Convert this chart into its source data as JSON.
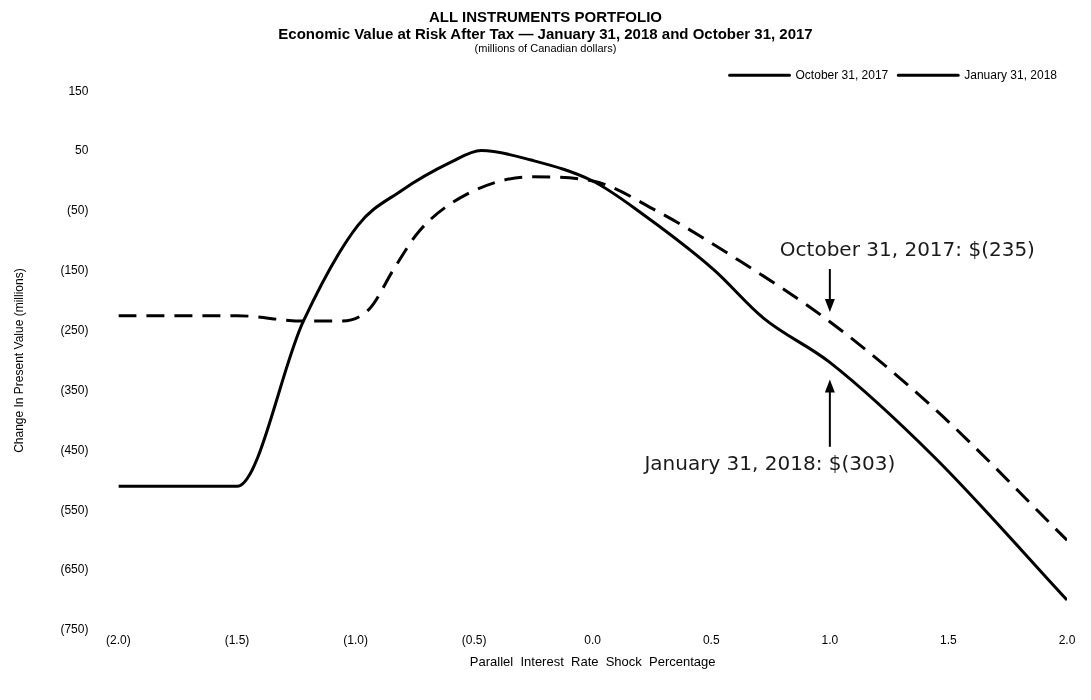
{
  "chart_data": {
    "type": "line",
    "title": "ALL INSTRUMENTS  PORTFOLIO",
    "subtitle": "Economic  Value at Risk After Tax — January 31, 2018 and October 31, 2017",
    "xlabel": "Parallel  Interest  Rate  Shock  Percentage",
    "ylabel": "Change In Present Value (millions)",
    "series": [
      {
        "name": "October 31, 2017",
        "color": "#000000",
        "line_style": "dashed",
        "x": [
          -2.0,
          -1.5,
          -1.22,
          -1.06,
          -0.94,
          -0.84,
          -0.73,
          -0.53,
          -0.26,
          0.0,
          0.27,
          0.59,
          1.0,
          1.44,
          2.0
        ],
        "values": [
          -225,
          -225,
          -234,
          -234,
          -213,
          -148,
          -83,
          -22,
          7,
          0,
          -50,
          -126,
          -235,
          -380,
          -600
        ]
      },
      {
        "name": "January 31, 2018",
        "color": "#000000",
        "line_style": "solid",
        "x": [
          -2.0,
          -1.5,
          -1.22,
          -0.99,
          -0.81,
          -0.6,
          -0.47,
          -0.26,
          0.0,
          0.21,
          0.51,
          0.72,
          1.0,
          1.44,
          2.0
        ],
        "values": [
          -510,
          -510,
          -234,
          -74,
          -17,
          31,
          51,
          35,
          0,
          -55,
          -148,
          -229,
          -303,
          -461,
          -700
        ]
      }
    ],
    "xlim": [
      -2.0,
      2.0
    ],
    "xticks": [
      {
        "value": -2.0,
        "label": "(2.0)"
      },
      {
        "value": -1.5,
        "label": "(1.5)"
      },
      {
        "value": -1.0,
        "label": "(1.0)"
      },
      {
        "value": -0.5,
        "label": "(0.5)"
      },
      {
        "value": 0,
        "label": "0.0"
      },
      {
        "value": 0.5,
        "label": "0.5"
      },
      {
        "value": 1.0,
        "label": "1.0"
      },
      {
        "value": 1.5,
        "label": "1.5"
      },
      {
        "value": 2.0,
        "label": "2.0"
      }
    ],
    "ylim": [
      -750,
      150
    ],
    "yticks": [
      {
        "value": -750,
        "label": "(750)"
      },
      {
        "value": -650,
        "label": "(650)"
      },
      {
        "value": -550,
        "label": "(550)"
      },
      {
        "value": -450,
        "label": "(450)"
      },
      {
        "value": -350,
        "label": "(350)"
      },
      {
        "value": -250,
        "label": "(250)"
      },
      {
        "value": -150,
        "label": "(150)"
      },
      {
        "value": -50,
        "label": "(50)"
      },
      50,
      150
    ],
    "grid": false,
    "legend": "top right",
    "marker": "none",
    "annotations": [
      "(millions of Canadian dollars)",
      "October 31, 2017: $(235)",
      "January 31, 2018: $(303)"
    ]
  }
}
